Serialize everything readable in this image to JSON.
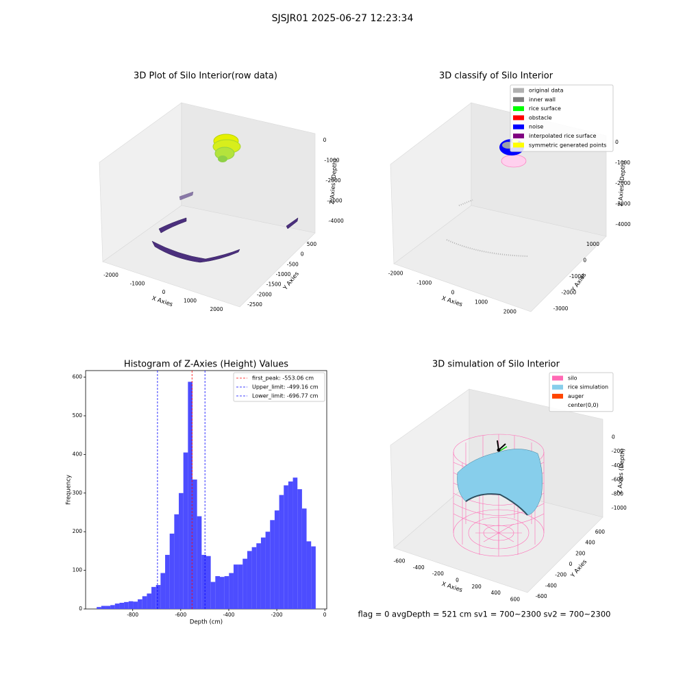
{
  "figure": {
    "title": "SJSJR01 2025-06-27 12:23:34",
    "footer": "flag = 0     avgDepth = 521 cm  sv1 = 700~2300  sv2 = 700~2300"
  },
  "chart_data": [
    {
      "type": "scatter3d",
      "title": "3D Plot of Silo Interior(row data)",
      "xlabel": "X Axies",
      "ylabel": "Y Axies",
      "zlabel": "Z Axies (Depth)",
      "xlim": [
        -2400,
        2400
      ],
      "xticks": [
        -2000,
        -1000,
        0,
        1000,
        2000
      ],
      "ylim": [
        -2700,
        700
      ],
      "yticks": [
        500,
        0,
        -500,
        -1000,
        -1500,
        -2000,
        -2500
      ],
      "zlim": [
        -4500,
        300
      ],
      "zticks": [
        0,
        -1000,
        -2000,
        -3000,
        -4000
      ]
    },
    {
      "type": "scatter3d",
      "title": "3D classify of Silo Interior",
      "xlabel": "X Axies",
      "ylabel": "Y Axies",
      "zlabel": "Z Axies (Depth)",
      "xlim": [
        -2400,
        2400
      ],
      "xticks": [
        -2000,
        -1000,
        0,
        1000,
        2000
      ],
      "ylim": [
        -3300,
        1300
      ],
      "yticks": [
        1000,
        0,
        -1000,
        -2000,
        -3000
      ],
      "zlim": [
        -4500,
        300
      ],
      "zticks": [
        0,
        -1000,
        -2000,
        -3000,
        -4000
      ],
      "series": [
        {
          "name": "original data",
          "color": "#b0b0b0"
        },
        {
          "name": "inner wall",
          "color": "#808080"
        },
        {
          "name": "rice surface",
          "color": "#00ff00"
        },
        {
          "name": "obstacle",
          "color": "#ff0000"
        },
        {
          "name": "noise",
          "color": "#0000ff"
        },
        {
          "name": "interpolated rice surface",
          "color": "#800080"
        },
        {
          "name": "symmetric generated points",
          "color": "#ffff00"
        }
      ]
    },
    {
      "type": "histogram",
      "title": "Histogram of Z-Axies (Height) Values",
      "xlabel": "Depth (cm)",
      "ylabel": "Frequency",
      "color": "#4d4dff",
      "bins": [
        -950,
        -931,
        -912,
        -893,
        -874,
        -855,
        -836,
        -817,
        -798,
        -779,
        -760,
        -741,
        -722,
        -703,
        -684,
        -665,
        -646,
        -627,
        -608,
        -589,
        -570,
        -551,
        -532,
        -513,
        -494,
        -475,
        -456,
        -437,
        -418,
        -399,
        -380,
        -361,
        -342,
        -323,
        -304,
        -285,
        -266,
        -247,
        -228,
        -209,
        -190,
        -171,
        -152,
        -133,
        -114,
        -95,
        -76,
        -57,
        -38
      ],
      "values": [
        5,
        8,
        8,
        10,
        14,
        16,
        18,
        20,
        19,
        25,
        33,
        40,
        57,
        62,
        93,
        140,
        195,
        245,
        300,
        405,
        588,
        335,
        240,
        140,
        137,
        70,
        85,
        83,
        85,
        93,
        115,
        115,
        130,
        150,
        160,
        170,
        185,
        200,
        230,
        255,
        295,
        320,
        330,
        340,
        310,
        260,
        175,
        162
      ],
      "xlim": [
        -996,
        8
      ],
      "xticks": [
        -800,
        -600,
        -400,
        -200,
        0
      ],
      "ylim": [
        0,
        617
      ],
      "yticks": [
        0,
        100,
        200,
        300,
        400,
        500,
        600
      ],
      "lines": [
        {
          "name": "first_peak: -553.06 cm",
          "value": -553.06,
          "color": "#ff0000"
        },
        {
          "name": "Upper_limit: -499.16 cm",
          "value": -499.16,
          "color": "#0000ff"
        },
        {
          "name": "Lower_limit: -696.77 cm",
          "value": -696.77,
          "color": "#0000ff"
        }
      ],
      "legend": "upper right"
    },
    {
      "type": "surface3d",
      "title": "3D simulation of Silo Interior",
      "xlabel": "X Axies",
      "ylabel": "Y Axies",
      "zlabel": "Z Axies (Depth)",
      "xlim": [
        -700,
        700
      ],
      "xticks": [
        -600,
        -400,
        -200,
        0,
        200,
        400,
        600
      ],
      "ylim": [
        -700,
        700
      ],
      "yticks": [
        600,
        400,
        200,
        0,
        -200,
        -400,
        -600
      ],
      "zlim": [
        -1200,
        100
      ],
      "zticks": [
        0,
        -200,
        -400,
        -600,
        -800,
        -1000
      ],
      "series": [
        {
          "name": "silo",
          "color": "#ff69b4"
        },
        {
          "name": "rice simulation",
          "color": "#87ceeb"
        },
        {
          "name": "auger",
          "color": "#ff4500"
        },
        {
          "name": "center(0,0)",
          "color": "#ffffff"
        }
      ]
    }
  ]
}
